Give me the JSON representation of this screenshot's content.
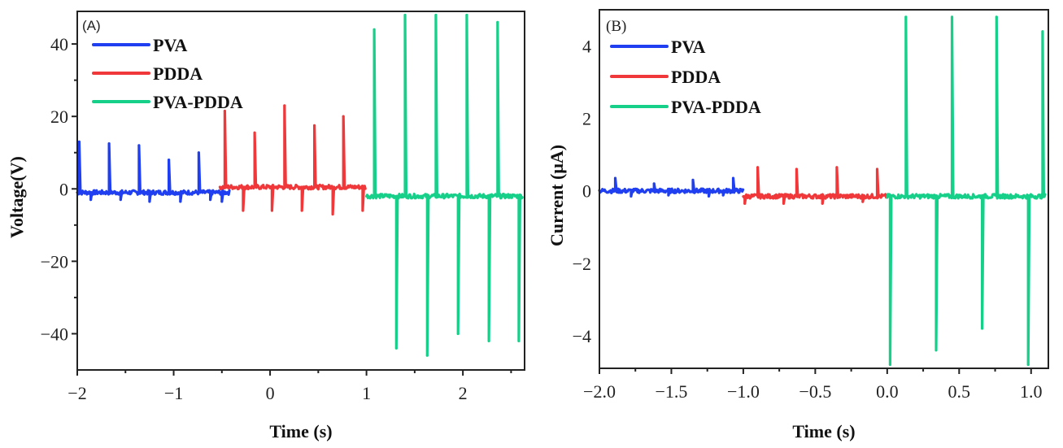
{
  "chart_data": [
    {
      "type": "line",
      "panel_label": "(A)",
      "title": "",
      "xlabel": "Time (s)",
      "ylabel": "Voltage(V)",
      "xlim": [
        -2,
        2.64
      ],
      "ylim": [
        -50,
        49
      ],
      "xticks": [
        -2,
        -1,
        0,
        1,
        2
      ],
      "xtick_labels": [
        "−2",
        "−1",
        "0",
        "1",
        "2"
      ],
      "x_minor_ticks": [
        -1.5,
        -0.5,
        0.5,
        1.5,
        2.5
      ],
      "yticks": [
        -40,
        -20,
        0,
        20,
        40
      ],
      "ytick_labels": [
        "−40",
        "−20",
        "0",
        "20",
        "40"
      ],
      "y_minor_ticks": [
        -30,
        -10,
        10,
        30
      ],
      "grid": false,
      "legend_position": "top-left",
      "series": [
        {
          "name": "PVA",
          "color": "#1f3ff0",
          "x_range": [
            -2.0,
            -0.42
          ],
          "baseline": -1,
          "peaks": [
            {
              "x": -1.98,
              "y": 13
            },
            {
              "x": -1.67,
              "y": 12.5
            },
            {
              "x": -1.36,
              "y": 12
            },
            {
              "x": -1.05,
              "y": 8
            },
            {
              "x": -0.74,
              "y": 10
            }
          ],
          "troughs": [
            {
              "x": -1.86,
              "y": -3
            },
            {
              "x": -1.55,
              "y": -3
            },
            {
              "x": -1.25,
              "y": -3.5
            },
            {
              "x": -0.93,
              "y": -3.5
            },
            {
              "x": -0.62,
              "y": -3
            },
            {
              "x": -0.5,
              "y": -3.5
            }
          ]
        },
        {
          "name": "PDDA",
          "color": "#f0383a",
          "x_range": [
            -0.52,
            0.99
          ],
          "baseline": 0.5,
          "peaks": [
            {
              "x": -0.47,
              "y": 21.5
            },
            {
              "x": -0.16,
              "y": 15.5
            },
            {
              "x": 0.15,
              "y": 23
            },
            {
              "x": 0.46,
              "y": 17.5
            },
            {
              "x": 0.76,
              "y": 20
            }
          ],
          "troughs": [
            {
              "x": -0.28,
              "y": -6
            },
            {
              "x": 0.02,
              "y": -6
            },
            {
              "x": 0.33,
              "y": -6
            },
            {
              "x": 0.65,
              "y": -7
            },
            {
              "x": 0.96,
              "y": -6
            }
          ]
        },
        {
          "name": "PVA-PDDA",
          "color": "#16d08a",
          "x_range": [
            1.0,
            2.62
          ],
          "baseline": -2,
          "peaks": [
            {
              "x": 1.08,
              "y": 44
            },
            {
              "x": 1.4,
              "y": 48
            },
            {
              "x": 1.72,
              "y": 48
            },
            {
              "x": 2.04,
              "y": 48
            },
            {
              "x": 2.36,
              "y": 46
            }
          ],
          "troughs": [
            {
              "x": 1.31,
              "y": -44
            },
            {
              "x": 1.63,
              "y": -46
            },
            {
              "x": 1.95,
              "y": -40
            },
            {
              "x": 2.27,
              "y": -42
            },
            {
              "x": 2.58,
              "y": -42
            }
          ]
        }
      ]
    },
    {
      "type": "line",
      "panel_label": "(B)",
      "title": "",
      "xlabel": "Time (s)",
      "ylabel": "Current (μA)",
      "xlim": [
        -2.0,
        1.12
      ],
      "ylim": [
        -4.9,
        5.0
      ],
      "xticks": [
        -2.0,
        -1.5,
        -1.0,
        -0.5,
        0.0,
        0.5,
        1.0
      ],
      "xtick_labels": [
        "−2.0",
        "−1.5",
        "−1.0",
        "−0.5",
        "0.0",
        "0.5",
        "1.0"
      ],
      "x_minor_ticks": [
        -1.75,
        -1.25,
        -0.75,
        -0.25,
        0.25,
        0.75
      ],
      "yticks": [
        -4,
        -2,
        0,
        2,
        4
      ],
      "ytick_labels": [
        "−4",
        "−2",
        "0",
        "2",
        "4"
      ],
      "grid": false,
      "legend_position": "top-left",
      "series": [
        {
          "name": "PVA",
          "color": "#1f3ff0",
          "x_range": [
            -2.0,
            -1.0
          ],
          "baseline": 0,
          "peaks": [
            {
              "x": -1.89,
              "y": 0.35
            },
            {
              "x": -1.62,
              "y": 0.2
            },
            {
              "x": -1.35,
              "y": 0.3
            },
            {
              "x": -1.07,
              "y": 0.35
            }
          ],
          "troughs": [
            {
              "x": -1.78,
              "y": -0.15
            },
            {
              "x": -1.52,
              "y": -0.12
            },
            {
              "x": -1.24,
              "y": -0.15
            },
            {
              "x": -1.14,
              "y": -0.12
            }
          ]
        },
        {
          "name": "PDDA",
          "color": "#f0383a",
          "x_range": [
            -1.0,
            0.0
          ],
          "baseline": -0.15,
          "peaks": [
            {
              "x": -0.9,
              "y": 0.65
            },
            {
              "x": -0.63,
              "y": 0.6
            },
            {
              "x": -0.35,
              "y": 0.65
            },
            {
              "x": -0.07,
              "y": 0.6
            }
          ],
          "troughs": [
            {
              "x": -0.99,
              "y": -0.35
            },
            {
              "x": -0.72,
              "y": -0.35
            },
            {
              "x": -0.45,
              "y": -0.35
            },
            {
              "x": -0.17,
              "y": -0.3
            }
          ]
        },
        {
          "name": "PVA-PDDA",
          "color": "#16d08a",
          "x_range": [
            0.0,
            1.1
          ],
          "baseline": -0.15,
          "peaks": [
            {
              "x": 0.13,
              "y": 4.8
            },
            {
              "x": 0.45,
              "y": 4.8
            },
            {
              "x": 0.76,
              "y": 4.8
            },
            {
              "x": 1.08,
              "y": 4.4
            }
          ],
          "troughs": [
            {
              "x": 0.02,
              "y": -4.8
            },
            {
              "x": 0.34,
              "y": -4.4
            },
            {
              "x": 0.66,
              "y": -3.8
            },
            {
              "x": 0.98,
              "y": -4.8
            }
          ]
        }
      ]
    }
  ]
}
